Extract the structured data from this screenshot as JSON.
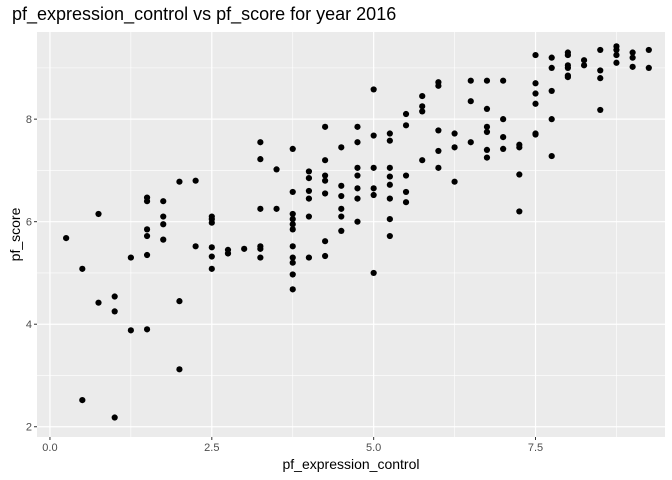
{
  "chart_data": {
    "type": "scatter",
    "title": "pf_expression_control vs pf_score for year 2016",
    "xlabel": "pf_expression_control",
    "ylabel": "pf_score",
    "xlim": [
      -0.2,
      9.5
    ],
    "ylim": [
      1.8,
      9.7
    ],
    "x_ticks": [
      0.0,
      2.5,
      5.0,
      7.5
    ],
    "x_tick_labels": [
      "0.0",
      "2.5",
      "5.0",
      "7.5"
    ],
    "y_ticks": [
      2,
      4,
      6,
      8
    ],
    "y_tick_labels": [
      "2",
      "4",
      "6",
      "8"
    ],
    "grid": true,
    "background": "#ebebeb",
    "grid_major_color": "#ffffff",
    "point_color": "#000000",
    "points": [
      [
        0.25,
        5.68
      ],
      [
        0.5,
        5.08
      ],
      [
        0.5,
        2.52
      ],
      [
        0.75,
        6.15
      ],
      [
        0.75,
        4.42
      ],
      [
        1.0,
        4.54
      ],
      [
        1.0,
        4.25
      ],
      [
        1.0,
        2.18
      ],
      [
        1.25,
        5.3
      ],
      [
        1.25,
        3.88
      ],
      [
        1.5,
        6.47
      ],
      [
        1.5,
        6.4
      ],
      [
        1.5,
        5.85
      ],
      [
        1.5,
        5.72
      ],
      [
        1.5,
        5.35
      ],
      [
        1.5,
        3.9
      ],
      [
        1.75,
        6.4
      ],
      [
        1.75,
        6.1
      ],
      [
        1.75,
        5.95
      ],
      [
        1.75,
        5.65
      ],
      [
        2.0,
        6.78
      ],
      [
        2.0,
        4.45
      ],
      [
        2.0,
        3.12
      ],
      [
        2.25,
        6.8
      ],
      [
        2.25,
        5.52
      ],
      [
        2.5,
        6.1
      ],
      [
        2.5,
        6.05
      ],
      [
        2.5,
        5.98
      ],
      [
        2.5,
        5.5
      ],
      [
        2.5,
        5.32
      ],
      [
        2.5,
        5.08
      ],
      [
        2.75,
        5.45
      ],
      [
        2.75,
        5.38
      ],
      [
        3.0,
        5.47
      ],
      [
        3.25,
        7.55
      ],
      [
        3.25,
        7.22
      ],
      [
        3.25,
        6.25
      ],
      [
        3.25,
        5.52
      ],
      [
        3.25,
        5.47
      ],
      [
        3.25,
        5.3
      ],
      [
        3.5,
        7.02
      ],
      [
        3.5,
        6.25
      ],
      [
        3.75,
        7.42
      ],
      [
        3.75,
        6.58
      ],
      [
        3.75,
        6.15
      ],
      [
        3.75,
        6.05
      ],
      [
        3.75,
        5.95
      ],
      [
        3.75,
        5.85
      ],
      [
        3.75,
        5.52
      ],
      [
        3.75,
        5.3
      ],
      [
        3.75,
        5.2
      ],
      [
        3.75,
        4.97
      ],
      [
        3.75,
        4.68
      ],
      [
        4.0,
        6.98
      ],
      [
        4.0,
        6.85
      ],
      [
        4.0,
        6.6
      ],
      [
        4.0,
        6.45
      ],
      [
        4.0,
        6.1
      ],
      [
        4.0,
        5.3
      ],
      [
        4.25,
        7.85
      ],
      [
        4.25,
        7.2
      ],
      [
        4.25,
        6.9
      ],
      [
        4.25,
        6.8
      ],
      [
        4.25,
        6.55
      ],
      [
        4.25,
        5.62
      ],
      [
        4.25,
        5.33
      ],
      [
        4.5,
        7.45
      ],
      [
        4.5,
        6.7
      ],
      [
        4.5,
        6.5
      ],
      [
        4.5,
        6.25
      ],
      [
        4.5,
        6.1
      ],
      [
        4.5,
        5.82
      ],
      [
        4.75,
        7.85
      ],
      [
        4.75,
        7.55
      ],
      [
        4.75,
        7.05
      ],
      [
        4.75,
        6.9
      ],
      [
        4.75,
        6.65
      ],
      [
        4.75,
        6.45
      ],
      [
        4.75,
        6.0
      ],
      [
        5.0,
        8.58
      ],
      [
        5.0,
        7.68
      ],
      [
        5.0,
        7.05
      ],
      [
        5.0,
        6.65
      ],
      [
        5.0,
        6.52
      ],
      [
        5.0,
        5.0
      ],
      [
        5.25,
        7.72
      ],
      [
        5.25,
        7.58
      ],
      [
        5.25,
        7.05
      ],
      [
        5.25,
        6.88
      ],
      [
        5.25,
        6.72
      ],
      [
        5.25,
        6.45
      ],
      [
        5.25,
        6.05
      ],
      [
        5.25,
        5.72
      ],
      [
        5.5,
        8.1
      ],
      [
        5.5,
        7.88
      ],
      [
        5.5,
        6.9
      ],
      [
        5.5,
        6.58
      ],
      [
        5.5,
        6.38
      ],
      [
        5.75,
        8.45
      ],
      [
        5.75,
        8.25
      ],
      [
        5.75,
        8.15
      ],
      [
        5.75,
        7.2
      ],
      [
        6.0,
        8.72
      ],
      [
        6.0,
        8.65
      ],
      [
        6.0,
        7.78
      ],
      [
        6.0,
        7.38
      ],
      [
        6.0,
        7.05
      ],
      [
        6.25,
        7.72
      ],
      [
        6.25,
        7.45
      ],
      [
        6.25,
        6.78
      ],
      [
        6.5,
        8.75
      ],
      [
        6.5,
        8.35
      ],
      [
        6.5,
        7.55
      ],
      [
        6.75,
        8.75
      ],
      [
        6.75,
        8.2
      ],
      [
        6.75,
        7.85
      ],
      [
        6.75,
        7.75
      ],
      [
        6.75,
        7.4
      ],
      [
        6.75,
        7.25
      ],
      [
        7.0,
        8.75
      ],
      [
        7.0,
        8.0
      ],
      [
        7.0,
        7.65
      ],
      [
        7.0,
        7.42
      ],
      [
        7.25,
        7.5
      ],
      [
        7.25,
        7.45
      ],
      [
        7.25,
        6.92
      ],
      [
        7.25,
        6.2
      ],
      [
        7.5,
        9.25
      ],
      [
        7.5,
        8.7
      ],
      [
        7.5,
        8.5
      ],
      [
        7.5,
        8.3
      ],
      [
        7.5,
        7.72
      ],
      [
        7.5,
        7.7
      ],
      [
        7.75,
        9.2
      ],
      [
        7.75,
        9.0
      ],
      [
        7.75,
        8.55
      ],
      [
        7.75,
        8.0
      ],
      [
        7.75,
        7.28
      ],
      [
        8.0,
        9.3
      ],
      [
        8.0,
        9.25
      ],
      [
        8.0,
        9.05
      ],
      [
        8.0,
        9.0
      ],
      [
        8.0,
        8.85
      ],
      [
        8.0,
        8.82
      ],
      [
        8.25,
        9.15
      ],
      [
        8.25,
        9.05
      ],
      [
        8.5,
        9.35
      ],
      [
        8.5,
        8.95
      ],
      [
        8.5,
        8.8
      ],
      [
        8.5,
        8.18
      ],
      [
        8.75,
        9.42
      ],
      [
        8.75,
        9.35
      ],
      [
        8.75,
        9.25
      ],
      [
        8.75,
        9.1
      ],
      [
        9.0,
        9.3
      ],
      [
        9.0,
        9.2
      ],
      [
        9.0,
        9.02
      ],
      [
        9.25,
        9.35
      ],
      [
        9.25,
        9.0
      ]
    ]
  }
}
